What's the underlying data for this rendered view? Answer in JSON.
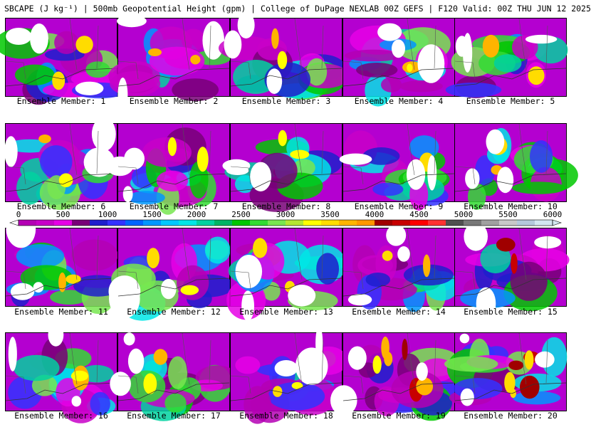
{
  "title": "SBCAPE (J kg⁻¹) | 500mb Geopotential Height (gpm) | College of DuPage NEXLAB 00Z GEFS | F120 Valid: 00Z THU JUN 12 2025",
  "colorbar": {
    "ticks": [
      "0",
      "500",
      "1000",
      "1500",
      "2000",
      "2500",
      "3000",
      "3500",
      "4000",
      "4500",
      "5000",
      "5500",
      "6000"
    ],
    "colors": [
      "#b400b4",
      "#c800c8",
      "#e600e6",
      "#780078",
      "#1e1ecd",
      "#3232ff",
      "#0064ff",
      "#0096ff",
      "#00c8ff",
      "#00e6e6",
      "#00d2a0",
      "#00b464",
      "#00c800",
      "#32dc32",
      "#78e650",
      "#b4e632",
      "#ffff00",
      "#ffdc00",
      "#ffb400",
      "#ff9600",
      "#a00000",
      "#c80000",
      "#ff0000",
      "#ff3232",
      "#505050",
      "#787878",
      "#a0a0a0",
      "#c8c8c8",
      "#b4c8dc",
      "#d2e6f0"
    ]
  },
  "members": [
    {
      "caption": "Ensemble Member: 1"
    },
    {
      "caption": "Ensemble Member: 2"
    },
    {
      "caption": "Ensemble Member: 3"
    },
    {
      "caption": "Ensemble Member: 4"
    },
    {
      "caption": "Ensemble Member: 5"
    },
    {
      "caption": "Ensemble Member: 6"
    },
    {
      "caption": "Ensemble Member: 7"
    },
    {
      "caption": "Ensemble Member: 8"
    },
    {
      "caption": "Ensemble Member: 9"
    },
    {
      "caption": "Ensemble Member: 10"
    },
    {
      "caption": "Ensemble Member: 11"
    },
    {
      "caption": "Ensemble Member: 12"
    },
    {
      "caption": "Ensemble Member: 13"
    },
    {
      "caption": "Ensemble Member: 14"
    },
    {
      "caption": "Ensemble Member: 15"
    },
    {
      "caption": "Ensemble Member: 16"
    },
    {
      "caption": "Ensemble Member: 17"
    },
    {
      "caption": "Ensemble Member: 18"
    },
    {
      "caption": "Ensemble Member: 19"
    },
    {
      "caption": "Ensemble Member: 20"
    }
  ]
}
